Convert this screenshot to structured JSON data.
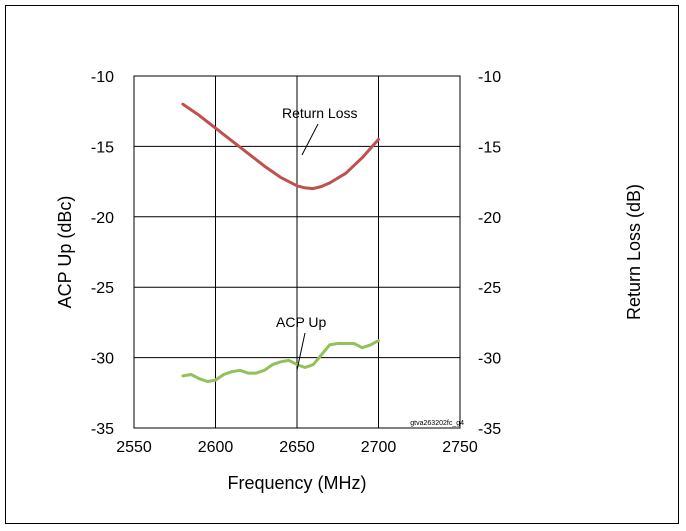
{
  "chart_data": {
    "type": "line",
    "title": "",
    "xlabel": "Frequency (MHz)",
    "ylabel_left": "ACP Up (dBc)",
    "ylabel_right": "Return Loss (dB)",
    "xlim": [
      2550,
      2750
    ],
    "ylim": [
      -35,
      -10
    ],
    "x_ticks": [
      "2550",
      "2600",
      "2650",
      "2700",
      "2750"
    ],
    "y_ticks_left": [
      "-10",
      "-15",
      "-20",
      "-25",
      "-30",
      "-35"
    ],
    "y_ticks_right": [
      "-10",
      "-15",
      "-20",
      "-25",
      "-30",
      "-35"
    ],
    "grid": true,
    "series": [
      {
        "name": "Return Loss",
        "color": "#c0504d",
        "x": [
          2580,
          2590,
          2600,
          2610,
          2620,
          2630,
          2640,
          2650,
          2655,
          2660,
          2665,
          2670,
          2680,
          2690,
          2700
        ],
        "y": [
          -12.0,
          -12.8,
          -13.7,
          -14.6,
          -15.5,
          -16.4,
          -17.2,
          -17.8,
          -17.95,
          -18.0,
          -17.85,
          -17.6,
          -16.9,
          -15.8,
          -14.5
        ]
      },
      {
        "name": "ACP Up",
        "color": "#92c05b",
        "x": [
          2580,
          2585,
          2590,
          2595,
          2600,
          2605,
          2610,
          2615,
          2620,
          2625,
          2630,
          2635,
          2640,
          2645,
          2650,
          2655,
          2660,
          2665,
          2670,
          2675,
          2680,
          2685,
          2690,
          2695,
          2700
        ],
        "y": [
          -31.3,
          -31.2,
          -31.5,
          -31.7,
          -31.6,
          -31.2,
          -31.0,
          -30.9,
          -31.1,
          -31.1,
          -30.9,
          -30.5,
          -30.3,
          -30.2,
          -30.5,
          -30.7,
          -30.5,
          -29.8,
          -29.1,
          -29.0,
          -29.0,
          -29.0,
          -29.3,
          -29.1,
          -28.8
        ]
      }
    ],
    "annotations": [
      {
        "text": "Return Loss",
        "series": "Return Loss"
      },
      {
        "text": "ACP Up",
        "series": "ACP Up"
      }
    ],
    "figure_code": "gtva263202fc_g4"
  }
}
